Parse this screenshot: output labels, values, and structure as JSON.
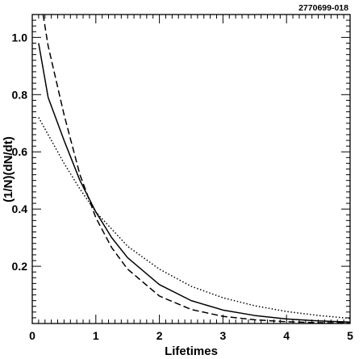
{
  "figure_label": "2770699-018",
  "chart_data": {
    "type": "line",
    "xlabel": "Lifetimes",
    "ylabel": "(1/N)(dN/dt)",
    "xlim": [
      0,
      5
    ],
    "ylim": [
      0,
      1.08
    ],
    "x_ticks": [
      "0",
      "1",
      "2",
      "3",
      "4",
      "5"
    ],
    "y_ticks": [
      "0.2",
      "0.4",
      "0.6",
      "0.8",
      "1.0"
    ],
    "grid": false,
    "series": [
      {
        "style": "solid",
        "x": [
          0.1,
          0.25,
          0.5,
          0.75,
          1.0,
          1.25,
          1.5,
          2.0,
          2.5,
          3.0,
          3.5,
          4.0,
          4.5,
          5.0
        ],
        "y": [
          0.98,
          0.79,
          0.64,
          0.5,
          0.39,
          0.3,
          0.23,
          0.136,
          0.08,
          0.047,
          0.028,
          0.016,
          0.009,
          0.005
        ]
      },
      {
        "style": "dashed",
        "x": [
          0.17,
          0.25,
          0.5,
          0.75,
          1.0,
          1.25,
          1.5,
          2.0,
          2.5,
          3.0,
          3.5,
          4.0,
          4.5,
          5.0
        ],
        "y": [
          1.08,
          0.97,
          0.73,
          0.52,
          0.37,
          0.265,
          0.19,
          0.096,
          0.049,
          0.025,
          0.013,
          0.006,
          0.003,
          0.002
        ]
      },
      {
        "style": "dotted",
        "x": [
          0.1,
          0.25,
          0.5,
          0.75,
          1.0,
          1.25,
          1.5,
          2.0,
          2.5,
          3.0,
          3.5,
          4.0,
          4.5,
          5.0
        ],
        "y": [
          0.72,
          0.66,
          0.56,
          0.47,
          0.39,
          0.33,
          0.27,
          0.19,
          0.13,
          0.09,
          0.062,
          0.042,
          0.028,
          0.018
        ]
      }
    ]
  }
}
